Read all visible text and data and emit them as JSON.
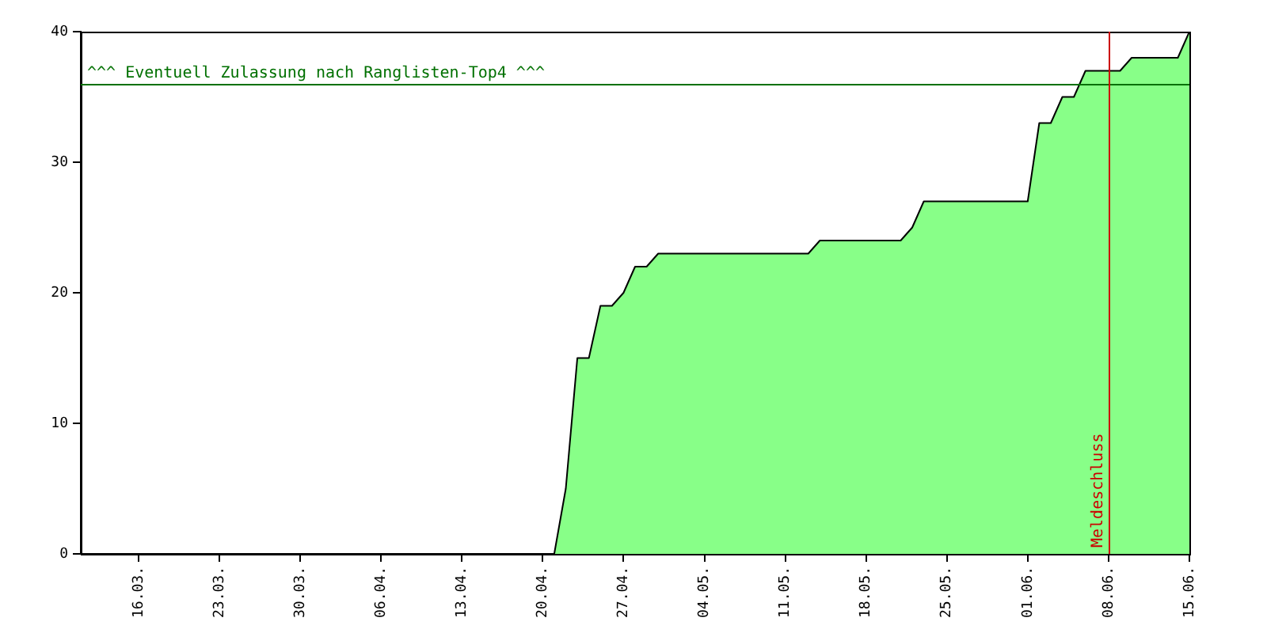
{
  "chart_data": {
    "type": "area",
    "x": [
      "--03-11",
      "--04-21",
      "--04-22",
      "--04-23",
      "--04-24",
      "--04-25",
      "--04-26",
      "--04-27",
      "--04-28",
      "--04-29",
      "--04-30",
      "--05-13",
      "--05-14",
      "--05-21",
      "--05-22",
      "--05-23",
      "--06-01",
      "--06-02",
      "--06-03",
      "--06-04",
      "--06-05",
      "--06-06",
      "--06-09",
      "--06-10",
      "--06-14",
      "--06-15"
    ],
    "series": [
      {
        "color": "#88ff88",
        "values": [
          0,
          0,
          5,
          15,
          15,
          19,
          19,
          20,
          22,
          22,
          23,
          23,
          24,
          24,
          25,
          27,
          27,
          33,
          33,
          35,
          35,
          37,
          37,
          38,
          38,
          40
        ]
      }
    ],
    "xlim": [
      "--03-11",
      "--06-15"
    ],
    "xticks": [
      {
        "value": "--03-16",
        "label": "16.03."
      },
      {
        "value": "--03-23",
        "label": "23.03."
      },
      {
        "value": "--03-30",
        "label": "30.03."
      },
      {
        "value": "--04-06",
        "label": "06.04."
      },
      {
        "value": "--04-13",
        "label": "13.04."
      },
      {
        "value": "--04-20",
        "label": "20.04."
      },
      {
        "value": "--04-27",
        "label": "27.04."
      },
      {
        "value": "--05-04",
        "label": "04.05."
      },
      {
        "value": "--05-11",
        "label": "11.05."
      },
      {
        "value": "--05-18",
        "label": "18.05."
      },
      {
        "value": "--05-25",
        "label": "25.05."
      },
      {
        "value": "--06-01",
        "label": "01.06."
      },
      {
        "value": "--06-08",
        "label": "08.06."
      },
      {
        "value": "--06-15",
        "label": "15.06."
      }
    ],
    "ylim": [
      0,
      40
    ],
    "yticks": [
      0,
      10,
      20,
      30,
      40
    ],
    "grid": false,
    "legend": false,
    "marker": "none",
    "ref_lines": [
      {
        "axis": "y",
        "value": 36,
        "label": "^^^ Eventuell Zulassung nach Ranglisten-Top4 ^^^",
        "color": "#007000"
      },
      {
        "axis": "x",
        "value": "--06-08",
        "label": "Meldeschluss",
        "color": "#cc0000"
      }
    ]
  }
}
